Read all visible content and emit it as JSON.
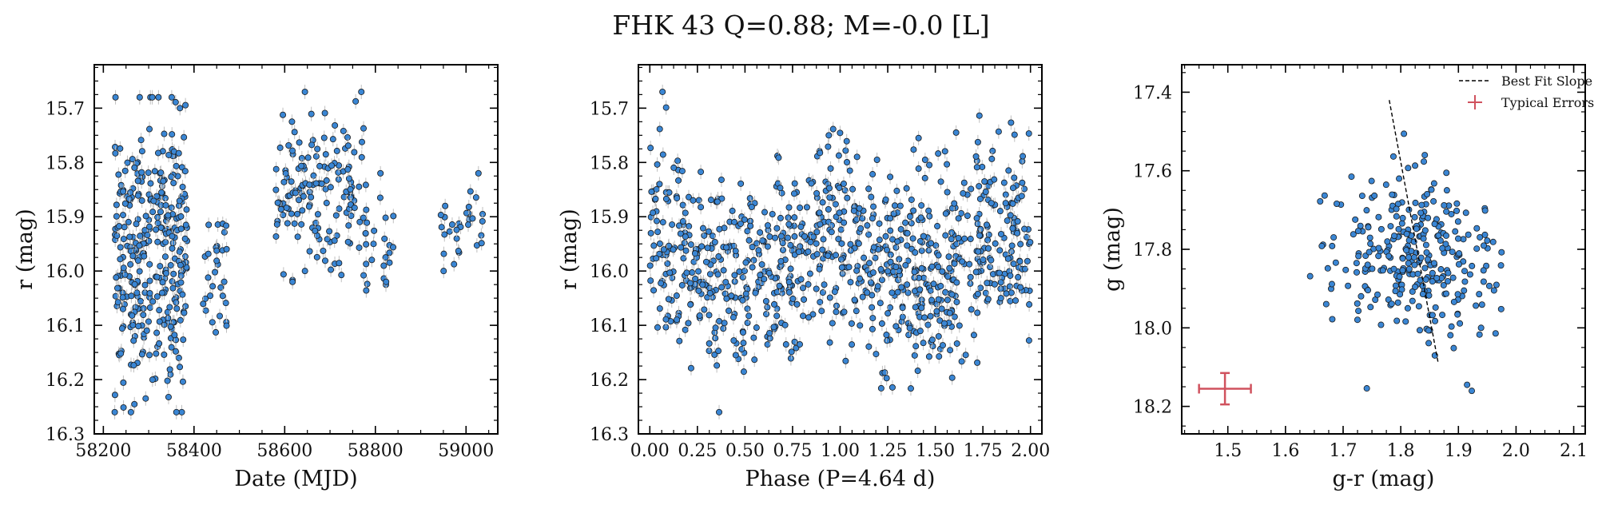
{
  "figure": {
    "title": "FHK 43  Q=0.88; M=-0.0 [L]"
  },
  "chart_data": [
    {
      "type": "scatter",
      "name": "lightcurve",
      "xlabel": "Date (MJD)",
      "ylabel": "r (mag)",
      "xlim": [
        58180,
        59070
      ],
      "ylim": [
        16.3,
        15.62
      ],
      "xticks": [
        "58200",
        "58400",
        "58600",
        "58800",
        "59000"
      ],
      "yticks": [
        "15.7",
        "15.8",
        "15.9",
        "16.0",
        "16.1",
        "16.2",
        "16.3"
      ],
      "y_inverted": true,
      "marker_color": "#3a86d4",
      "groups": [
        {
          "x_range": [
            58225,
            58385
          ],
          "y_range": [
            15.68,
            16.26
          ],
          "count": 330
        },
        {
          "x_range": [
            58420,
            58475
          ],
          "y_range": [
            15.82,
            16.16
          ],
          "count": 30
        },
        {
          "x_range": [
            58580,
            58780
          ],
          "y_range": [
            15.67,
            16.02
          ],
          "count": 150
        },
        {
          "x_range": [
            58770,
            58840
          ],
          "y_range": [
            15.82,
            16.08
          ],
          "count": 25
        },
        {
          "x_range": [
            58940,
            59040
          ],
          "y_range": [
            15.82,
            16.0
          ],
          "count": 30
        }
      ]
    },
    {
      "type": "scatter",
      "name": "phased",
      "xlabel": "Phase (P=4.64 d)",
      "ylabel": "r (mag)",
      "xlim": [
        -0.06,
        2.06
      ],
      "ylim": [
        16.3,
        15.62
      ],
      "xticks": [
        "0.00",
        "0.25",
        "0.50",
        "0.75",
        "1.00",
        "1.25",
        "1.50",
        "1.75",
        "2.00"
      ],
      "yticks": [
        "15.7",
        "15.8",
        "15.9",
        "16.0",
        "16.1",
        "16.2",
        "16.3"
      ],
      "y_inverted": true,
      "marker_color": "#3a86d4",
      "phase_range": [
        0,
        2
      ],
      "y_center": 15.97,
      "y_amplitude": 0.07,
      "count": 900
    },
    {
      "type": "scatter",
      "name": "color-magnitude",
      "xlabel": "g-r (mag)",
      "ylabel": "g (mag)",
      "xlim": [
        1.42,
        2.12
      ],
      "ylim": [
        18.27,
        17.33
      ],
      "xticks": [
        "1.5",
        "1.6",
        "1.7",
        "1.8",
        "1.9",
        "2.0",
        "2.1"
      ],
      "yticks": [
        "17.4",
        "17.6",
        "17.8",
        "18.0",
        "18.2"
      ],
      "y_inverted": true,
      "marker_color": "#3a86d4",
      "center": [
        1.83,
        17.82
      ],
      "spread": [
        0.07,
        0.1
      ],
      "count": 300,
      "best_fit_line": {
        "x": [
          1.78,
          1.865
        ],
        "y": [
          17.42,
          18.09
        ]
      },
      "typical_error": {
        "x": 1.495,
        "y": 18.155,
        "xerr": 0.045,
        "yerr": 0.04
      },
      "legend": {
        "position": "top-right",
        "entries": [
          "Best Fit Slope",
          "Typical Errors"
        ]
      }
    }
  ]
}
